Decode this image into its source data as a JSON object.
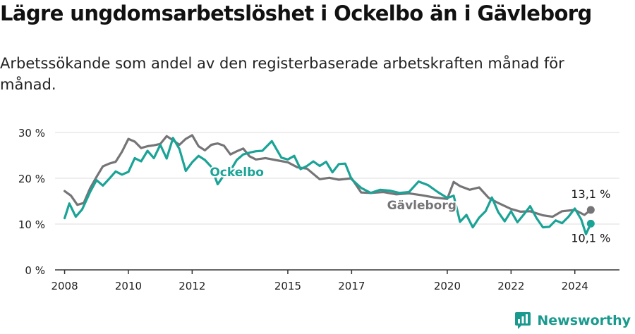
{
  "title": "Lägre ungdomsarbetslöshet i Ockelbo än i Gävleborg",
  "subtitle": "Arbetssökande som andel av den registerbaserade arbetskraften månad för månad.",
  "brand": "Newsworthy",
  "colors": {
    "ockelbo": "#1aa396",
    "gavleborg": "#757578",
    "grid": "#dddddd",
    "axis": "#333333",
    "text": "#222222"
  },
  "chart_data": {
    "type": "line",
    "title": "Lägre ungdomsarbetslöshet i Ockelbo än i Gävleborg",
    "subtitle": "Arbetssökande som andel av den registerbaserade arbetskraften månad för månad.",
    "xlabel": "",
    "ylabel": "",
    "ylim": [
      0,
      30
    ],
    "xlim": [
      2007.7,
      2025.4
    ],
    "yticks": [
      0,
      10,
      20,
      30
    ],
    "ytick_labels": [
      "0 %",
      "10 %",
      "20 %",
      "30 %"
    ],
    "xticks": [
      2008,
      2010,
      2012,
      2015,
      2017,
      2020,
      2022,
      2024
    ],
    "xtick_labels": [
      "2008",
      "2010",
      "2012",
      "2015",
      "2017",
      "2020",
      "2022",
      "2024"
    ],
    "grid": true,
    "legend": "direct labels on lines",
    "series": [
      {
        "name": "Gävleborg",
        "end_label": "13,1 %",
        "x": [
          2008.0,
          2008.2,
          2008.4,
          2008.6,
          2008.8,
          2009.0,
          2009.2,
          2009.4,
          2009.6,
          2009.8,
          2010.0,
          2010.2,
          2010.4,
          2010.6,
          2010.8,
          2011.0,
          2011.2,
          2011.4,
          2011.6,
          2011.8,
          2012.0,
          2012.2,
          2012.4,
          2012.6,
          2012.8,
          2013.0,
          2013.2,
          2013.4,
          2013.6,
          2013.8,
          2014.0,
          2014.3,
          2014.6,
          2015.0,
          2015.3,
          2015.6,
          2016.0,
          2016.3,
          2016.6,
          2017.0,
          2017.3,
          2017.6,
          2018.0,
          2018.4,
          2018.8,
          2019.2,
          2019.6,
          2020.0,
          2020.2,
          2020.4,
          2020.7,
          2021.0,
          2021.3,
          2021.6,
          2022.0,
          2022.3,
          2022.6,
          2023.0,
          2023.3,
          2023.6,
          2024.0,
          2024.3,
          2024.5
        ],
        "values": [
          17.2,
          16.2,
          14.2,
          14.6,
          17.8,
          20.3,
          22.6,
          23.2,
          23.6,
          25.8,
          28.6,
          28.0,
          26.6,
          27.0,
          27.2,
          27.5,
          29.2,
          28.3,
          27.3,
          28.6,
          29.4,
          27.0,
          26.1,
          27.3,
          27.6,
          27.1,
          25.2,
          25.9,
          26.5,
          24.8,
          24.1,
          24.4,
          24.0,
          23.5,
          22.4,
          22.1,
          19.8,
          20.1,
          19.7,
          20.0,
          16.9,
          16.8,
          17.0,
          16.5,
          16.7,
          16.3,
          15.8,
          15.5,
          19.2,
          18.3,
          17.5,
          18.0,
          15.7,
          14.6,
          13.3,
          12.7,
          12.8,
          11.9,
          11.6,
          12.8,
          13.1,
          12.0,
          13.1
        ]
      },
      {
        "name": "Ockelbo",
        "end_label": "10,1 %",
        "x": [
          2008.0,
          2008.15,
          2008.35,
          2008.55,
          2008.8,
          2009.0,
          2009.2,
          2009.4,
          2009.6,
          2009.8,
          2010.0,
          2010.2,
          2010.4,
          2010.6,
          2010.8,
          2011.0,
          2011.2,
          2011.4,
          2011.6,
          2011.8,
          2012.0,
          2012.2,
          2012.4,
          2012.6,
          2012.8,
          2013.0,
          2013.2,
          2013.4,
          2013.6,
          2013.8,
          2014.0,
          2014.2,
          2014.5,
          2014.8,
          2015.0,
          2015.2,
          2015.4,
          2015.6,
          2015.8,
          2016.0,
          2016.2,
          2016.4,
          2016.6,
          2016.8,
          2017.0,
          2017.3,
          2017.6,
          2017.9,
          2018.2,
          2018.5,
          2018.8,
          2019.1,
          2019.4,
          2019.7,
          2020.0,
          2020.2,
          2020.4,
          2020.6,
          2020.8,
          2021.0,
          2021.2,
          2021.4,
          2021.6,
          2021.8,
          2022.0,
          2022.2,
          2022.4,
          2022.6,
          2022.8,
          2023.0,
          2023.2,
          2023.4,
          2023.6,
          2023.8,
          2024.0,
          2024.2,
          2024.35,
          2024.5
        ],
        "values": [
          11.3,
          14.5,
          11.6,
          13.2,
          17.0,
          19.6,
          18.4,
          19.9,
          21.5,
          20.8,
          21.4,
          24.4,
          23.7,
          26.0,
          24.4,
          27.3,
          24.3,
          28.8,
          26.4,
          21.6,
          23.5,
          24.9,
          24.0,
          22.5,
          18.7,
          20.7,
          21.7,
          24.0,
          25.2,
          25.6,
          25.9,
          26.0,
          28.1,
          24.5,
          24.1,
          24.9,
          22.0,
          22.7,
          23.7,
          22.7,
          23.6,
          21.3,
          23.1,
          23.2,
          19.8,
          17.9,
          16.8,
          17.5,
          17.3,
          16.8,
          17.0,
          19.3,
          18.5,
          17.0,
          15.7,
          16.2,
          10.5,
          12.0,
          9.3,
          11.4,
          12.8,
          15.8,
          12.6,
          10.6,
          12.8,
          10.4,
          12.1,
          13.9,
          11.3,
          9.3,
          9.4,
          10.8,
          10.2,
          11.6,
          13.4,
          11.0,
          7.8,
          10.1
        ]
      }
    ]
  }
}
